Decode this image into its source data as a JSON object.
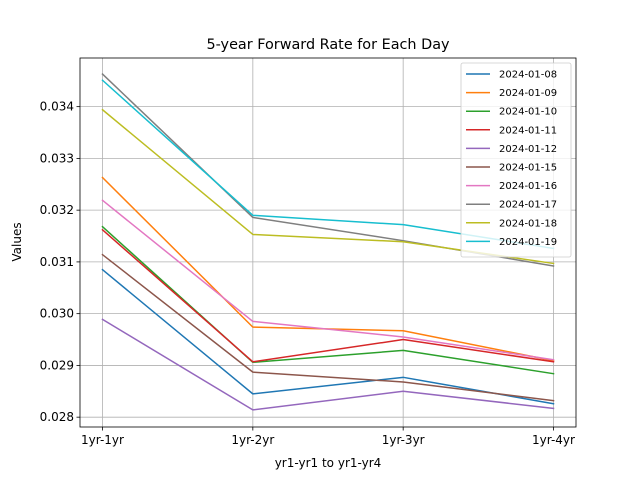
{
  "chart_data": {
    "type": "line",
    "title": "5-year Forward Rate for Each Day",
    "xlabel": "yr1-yr1 to yr1-yr4",
    "ylabel": "Values",
    "categories": [
      "1yr-1yr",
      "1yr-2yr",
      "1yr-3yr",
      "1yr-4yr"
    ],
    "ylim": [
      0.02781,
      0.03494
    ],
    "yticks": [
      "0.028",
      "0.029",
      "0.030",
      "0.031",
      "0.032",
      "0.033",
      "0.034"
    ],
    "grid": true,
    "legend_position": "upper right",
    "series": [
      {
        "name": "2024-01-08",
        "color": "#1f77b4",
        "values": [
          0.03085,
          0.02845,
          0.02877,
          0.02826
        ]
      },
      {
        "name": "2024-01-09",
        "color": "#ff7f0e",
        "values": [
          0.03263,
          0.02974,
          0.02967,
          0.02909
        ]
      },
      {
        "name": "2024-01-10",
        "color": "#2ca02c",
        "values": [
          0.03168,
          0.02906,
          0.02929,
          0.02884
        ]
      },
      {
        "name": "2024-01-11",
        "color": "#d62728",
        "values": [
          0.03162,
          0.02907,
          0.0295,
          0.02907
        ]
      },
      {
        "name": "2024-01-12",
        "color": "#9467bd",
        "values": [
          0.02989,
          0.02814,
          0.0285,
          0.02817
        ]
      },
      {
        "name": "2024-01-15",
        "color": "#8c564b",
        "values": [
          0.03114,
          0.02887,
          0.02868,
          0.02832
        ]
      },
      {
        "name": "2024-01-16",
        "color": "#e377c2",
        "values": [
          0.03219,
          0.02985,
          0.02955,
          0.02911
        ]
      },
      {
        "name": "2024-01-17",
        "color": "#7f7f7f",
        "values": [
          0.03463,
          0.03186,
          0.03141,
          0.03092
        ]
      },
      {
        "name": "2024-01-18",
        "color": "#bcbd22",
        "values": [
          0.03394,
          0.03153,
          0.03139,
          0.03097
        ]
      },
      {
        "name": "2024-01-19",
        "color": "#17becf",
        "values": [
          0.03451,
          0.0319,
          0.03172,
          0.03126
        ]
      }
    ]
  }
}
